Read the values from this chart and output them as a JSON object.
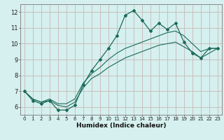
{
  "xlabel": "Humidex (Indice chaleur)",
  "bg_color": "#d5f0ee",
  "grid_color": "#c8b8b8",
  "line_color": "#1a6b5a",
  "xlim": [
    -0.5,
    23.5
  ],
  "ylim": [
    5.5,
    12.5
  ],
  "xticks": [
    0,
    1,
    2,
    3,
    4,
    5,
    6,
    7,
    8,
    9,
    10,
    11,
    12,
    13,
    14,
    15,
    16,
    17,
    18,
    19,
    20,
    21,
    22,
    23
  ],
  "yticks": [
    6,
    7,
    8,
    9,
    10,
    11,
    12
  ],
  "line1_x": [
    0,
    1,
    2,
    3,
    4,
    5,
    6,
    7,
    8,
    9,
    10,
    11,
    12,
    13,
    14,
    15,
    16,
    17,
    18,
    19,
    20,
    21,
    22,
    23
  ],
  "line1_y": [
    7.0,
    6.4,
    6.2,
    6.4,
    5.8,
    5.8,
    6.1,
    7.4,
    8.3,
    9.0,
    9.7,
    10.5,
    11.8,
    12.1,
    11.5,
    10.8,
    11.3,
    10.9,
    11.3,
    10.1,
    9.4,
    9.1,
    9.7,
    9.7
  ],
  "line2_x": [
    0,
    1,
    2,
    3,
    4,
    5,
    6,
    7,
    8,
    9,
    10,
    11,
    12,
    13,
    14,
    15,
    16,
    17,
    18,
    19,
    20,
    21,
    22,
    23
  ],
  "line2_y": [
    7.0,
    6.5,
    6.3,
    6.5,
    6.2,
    6.2,
    6.5,
    7.5,
    8.1,
    8.5,
    9.0,
    9.4,
    9.7,
    9.9,
    10.1,
    10.3,
    10.5,
    10.7,
    10.8,
    10.5,
    10.0,
    9.5,
    9.7,
    9.7
  ],
  "line3_x": [
    0,
    1,
    2,
    3,
    4,
    5,
    6,
    7,
    8,
    9,
    10,
    11,
    12,
    13,
    14,
    15,
    16,
    17,
    18,
    19,
    20,
    21,
    22,
    23
  ],
  "line3_y": [
    7.0,
    6.5,
    6.3,
    6.4,
    6.1,
    6.0,
    6.3,
    7.2,
    7.8,
    8.1,
    8.5,
    8.8,
    9.1,
    9.3,
    9.5,
    9.7,
    9.9,
    10.0,
    10.1,
    9.8,
    9.5,
    9.1,
    9.4,
    9.7
  ]
}
